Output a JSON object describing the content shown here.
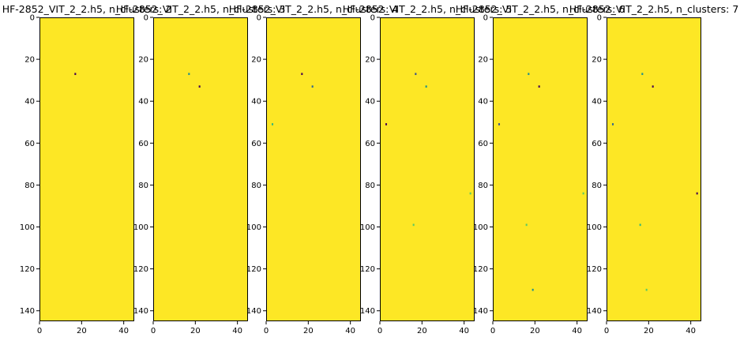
{
  "figure": {
    "background": "#ffffff",
    "heatmap_fill": "#fde725",
    "frame_color": "#000000"
  },
  "chart_data": [
    {
      "type": "heatmap",
      "title": "HF-2852_VIT_2_2.h5, n_clusters: 2",
      "xlim": [
        0,
        45
      ],
      "ylim": [
        145,
        0
      ],
      "xticks": [
        "0",
        "20",
        "40"
      ],
      "yticks": [
        "0",
        "20",
        "40",
        "60",
        "80",
        "100",
        "120",
        "140"
      ],
      "cells": [
        {
          "x": 17,
          "y": 27,
          "color": "#440154"
        }
      ]
    },
    {
      "type": "heatmap",
      "title": "HF-2852_VIT_2_2.h5, n_clusters: 3",
      "xlim": [
        0,
        45
      ],
      "ylim": [
        145,
        0
      ],
      "xticks": [
        "0",
        "20",
        "40"
      ],
      "yticks": [
        "0",
        "20",
        "40",
        "60",
        "80",
        "100",
        "120",
        "140"
      ],
      "cells": [
        {
          "x": 17,
          "y": 27,
          "color": "#21918c"
        },
        {
          "x": 22,
          "y": 33,
          "color": "#440154"
        }
      ]
    },
    {
      "type": "heatmap",
      "title": "HF-2852_VIT_2_2.h5, n_clusters: 4",
      "xlim": [
        0,
        45
      ],
      "ylim": [
        145,
        0
      ],
      "xticks": [
        "0",
        "20",
        "40"
      ],
      "yticks": [
        "0",
        "20",
        "40",
        "60",
        "80",
        "100",
        "120",
        "140"
      ],
      "cells": [
        {
          "x": 17,
          "y": 27,
          "color": "#440154"
        },
        {
          "x": 22,
          "y": 33,
          "color": "#31688e"
        },
        {
          "x": 3,
          "y": 51,
          "color": "#35b779"
        }
      ]
    },
    {
      "type": "heatmap",
      "title": "HF-2852_VIT_2_2.h5, n_clusters: 5",
      "xlim": [
        0,
        45
      ],
      "ylim": [
        145,
        0
      ],
      "xticks": [
        "0",
        "20",
        "40"
      ],
      "yticks": [
        "0",
        "20",
        "40",
        "60",
        "80",
        "100",
        "120",
        "140"
      ],
      "cells": [
        {
          "x": 17,
          "y": 27,
          "color": "#3b528b"
        },
        {
          "x": 22,
          "y": 33,
          "color": "#21918c"
        },
        {
          "x": 3,
          "y": 51,
          "color": "#440154"
        },
        {
          "x": 43,
          "y": 84,
          "color": "#5ec962"
        },
        {
          "x": 16,
          "y": 99,
          "color": "#5ec962"
        }
      ]
    },
    {
      "type": "heatmap",
      "title": "HF-2852_VIT_2_2.h5, n_clusters: 6",
      "xlim": [
        0,
        45
      ],
      "ylim": [
        145,
        0
      ],
      "xticks": [
        "0",
        "20",
        "40"
      ],
      "yticks": [
        "0",
        "20",
        "40",
        "60",
        "80",
        "100",
        "120",
        "140"
      ],
      "cells": [
        {
          "x": 17,
          "y": 27,
          "color": "#21918c"
        },
        {
          "x": 22,
          "y": 33,
          "color": "#440154"
        },
        {
          "x": 3,
          "y": 51,
          "color": "#3b528b"
        },
        {
          "x": 43,
          "y": 84,
          "color": "#5ec962"
        },
        {
          "x": 16,
          "y": 99,
          "color": "#5ec962"
        },
        {
          "x": 19,
          "y": 130,
          "color": "#21918c"
        }
      ]
    },
    {
      "type": "heatmap",
      "title": "HF-2852_VIT_2_2.h5, n_clusters: 7",
      "xlim": [
        0,
        45
      ],
      "ylim": [
        145,
        0
      ],
      "xticks": [
        "0",
        "20",
        "40"
      ],
      "yticks": [
        "0",
        "20",
        "40",
        "60",
        "80",
        "100",
        "120",
        "140"
      ],
      "cells": [
        {
          "x": 17,
          "y": 27,
          "color": "#21918c"
        },
        {
          "x": 22,
          "y": 33,
          "color": "#440154"
        },
        {
          "x": 3,
          "y": 51,
          "color": "#31688e"
        },
        {
          "x": 43,
          "y": 84,
          "color": "#440154"
        },
        {
          "x": 16,
          "y": 99,
          "color": "#35b779"
        },
        {
          "x": 19,
          "y": 130,
          "color": "#5ec962"
        }
      ]
    }
  ]
}
